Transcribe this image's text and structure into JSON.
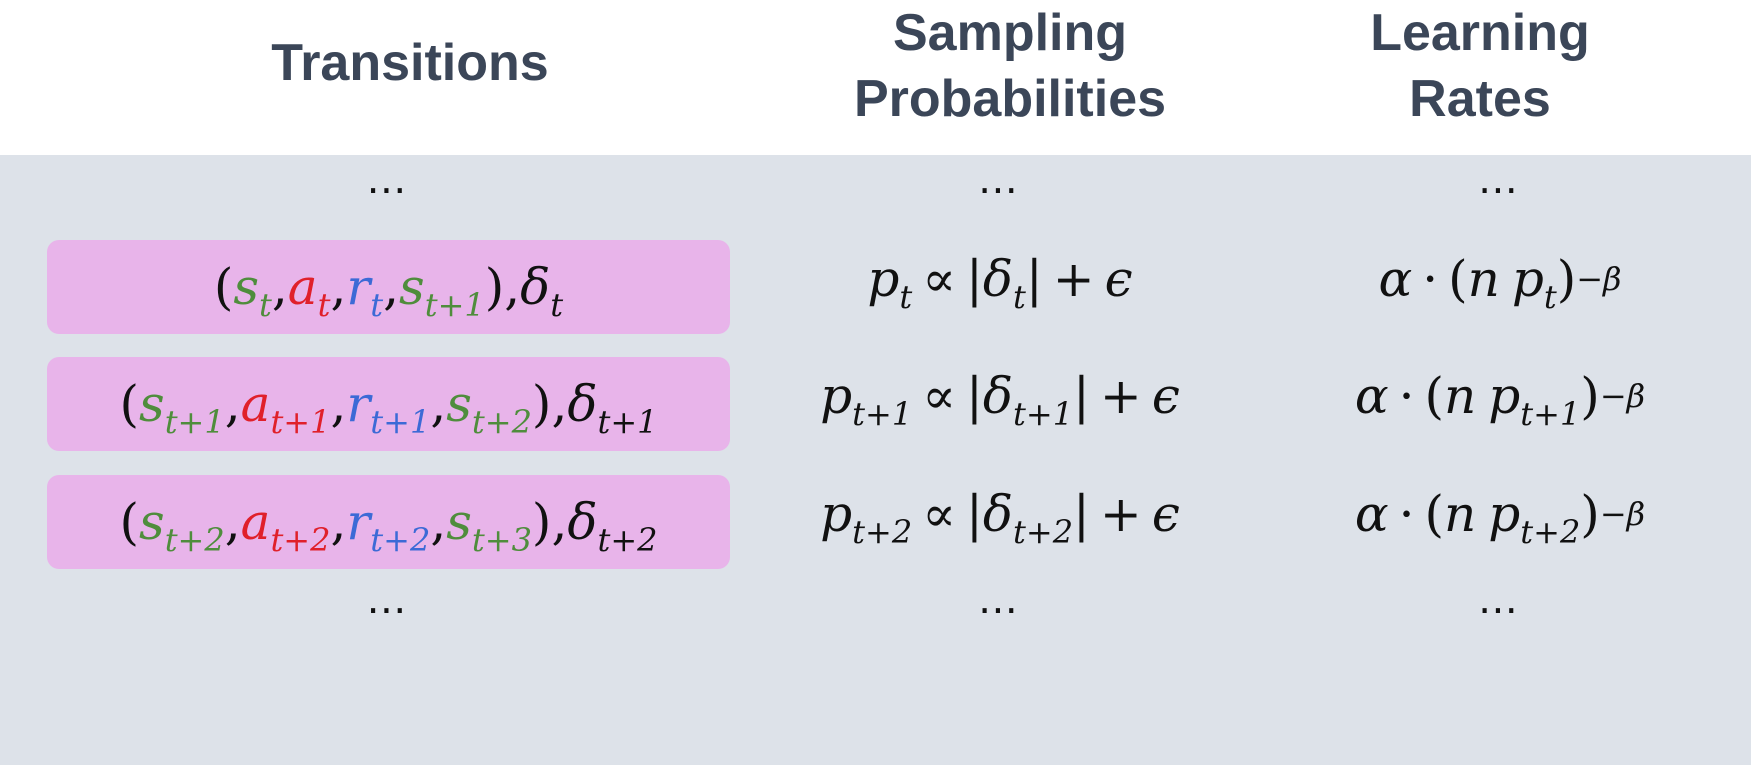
{
  "headers": {
    "transitions": [
      "Transitions"
    ],
    "sampling": [
      "Sampling",
      "Probabilities"
    ],
    "learning": [
      "Learning",
      "Rates"
    ]
  },
  "ellipsis": "⋯",
  "symbols": {
    "s": "s",
    "a": "a",
    "r": "r",
    "delta": "δ",
    "p": "p",
    "alpha": "α",
    "n": "n",
    "minus_beta": "−β",
    "propto": "∝",
    "plus": "+",
    "epsilon": "ϵ",
    "cdot": "·",
    "open": "(",
    "close": ")",
    "comma": ",",
    "bar": "|"
  },
  "rows": [
    {
      "i": "t",
      "i1": "t+1",
      "i_next": "t+1"
    },
    {
      "i": "t+1",
      "i1": "t+2",
      "i_next": "t+2"
    },
    {
      "i": "t+2",
      "i1": "t+3",
      "i_next": "t+3"
    }
  ],
  "colors": {
    "state": "#4f8d3c",
    "action": "#e0202a",
    "reward": "#3c6ad6",
    "highlight": "#e8b4ea",
    "table_bg": "#dde2e9",
    "header_text": "#3b4658"
  }
}
